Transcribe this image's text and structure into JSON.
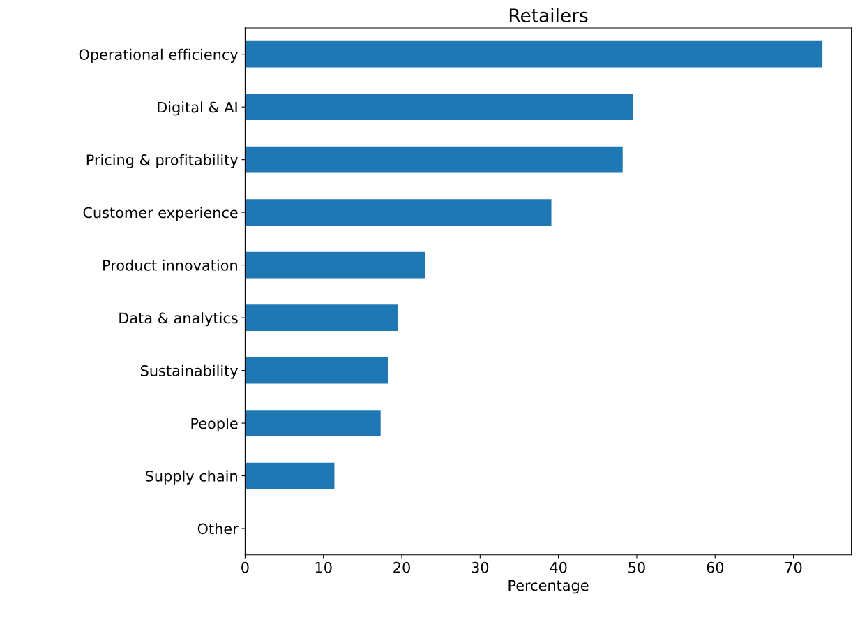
{
  "chart_data": {
    "type": "bar",
    "orientation": "horizontal",
    "title": "Retailers",
    "xlabel": "Percentage",
    "categories": [
      "Operational efficiency",
      "Digital & AI",
      "Pricing & profitability",
      "Customer experience",
      "Product innovation",
      "Data & analytics",
      "Sustainability",
      "People",
      "Supply chain",
      "Other"
    ],
    "values": [
      73.7,
      49.5,
      48.2,
      39.1,
      23.0,
      19.5,
      18.3,
      17.3,
      11.4,
      0
    ],
    "color": "#1f77b4",
    "xlim": [
      0,
      77.4
    ],
    "xticks": [
      0,
      10,
      20,
      30,
      40,
      50,
      60,
      70
    ],
    "grid": false,
    "legend": false
  }
}
